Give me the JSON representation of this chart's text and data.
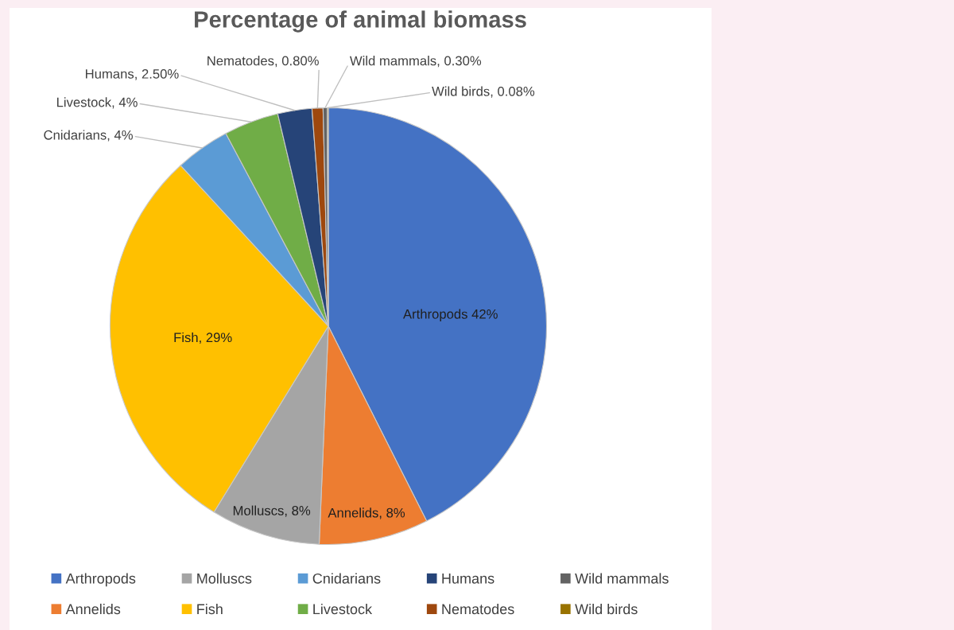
{
  "chart_data": {
    "type": "pie",
    "title": "Percentage of animal biomass",
    "categories": [
      "Arthropods",
      "Annelids",
      "Molluscs",
      "Fish",
      "Cnidarians",
      "Livestock",
      "Humans",
      "Nematodes",
      "Wild mammals",
      "Wild birds"
    ],
    "values": [
      42,
      8,
      8,
      29,
      4,
      4,
      2.5,
      0.8,
      0.3,
      0.08
    ],
    "value_labels": [
      "Arthropods 42%",
      "Annelids, 8%",
      "Molluscs, 8%",
      "Fish, 29%",
      "Cnidarians, 4%",
      "Livestock, 4%",
      "Humans, 2.50%",
      "Nematodes, 0.80%",
      "Wild mammals, 0.30%",
      "Wild birds, 0.08%"
    ],
    "colors": [
      "#4472c4",
      "#ed7d31",
      "#a5a5a5",
      "#ffc000",
      "#5b9bd5",
      "#70ad47",
      "#264478",
      "#9e480e",
      "#636363",
      "#997300"
    ],
    "legend": "bottom"
  }
}
